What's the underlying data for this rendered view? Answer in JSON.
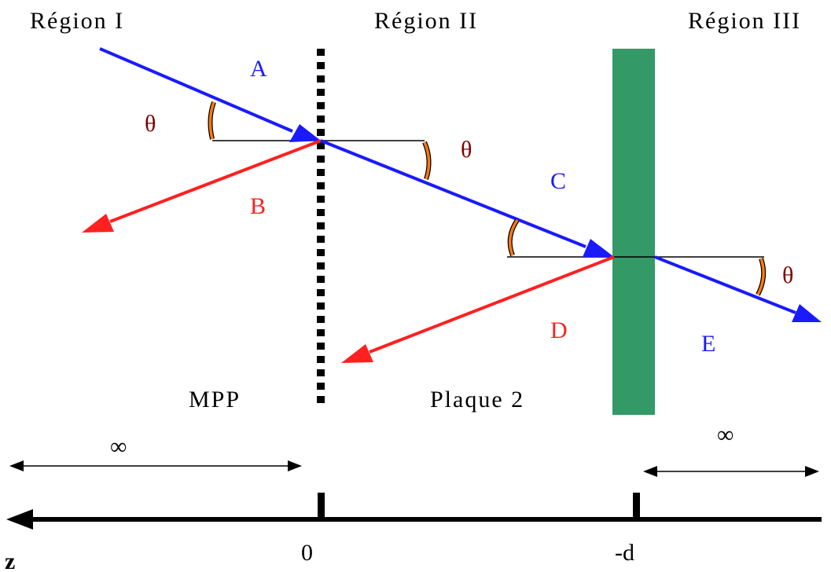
{
  "regions": [
    "Région I",
    "Région II",
    "Région III"
  ],
  "rays": [
    {
      "label": "A",
      "color": "#1a1aff"
    },
    {
      "label": "B",
      "color": "#ff2020"
    },
    {
      "label": "C",
      "color": "#1a1aff"
    },
    {
      "label": "D",
      "color": "#ff2020"
    },
    {
      "label": "E",
      "color": "#1a1aff"
    }
  ],
  "angle_symbol": "θ",
  "angle_color": "#800000",
  "arc_color": "#ff7a10",
  "plates": {
    "mpp_label": "MPP",
    "plate2_label": "Plaque 2",
    "plate2_color": "#339966"
  },
  "infinity_symbol": "∞",
  "axis": {
    "label": "z",
    "ticks": [
      "0",
      "-d"
    ]
  }
}
